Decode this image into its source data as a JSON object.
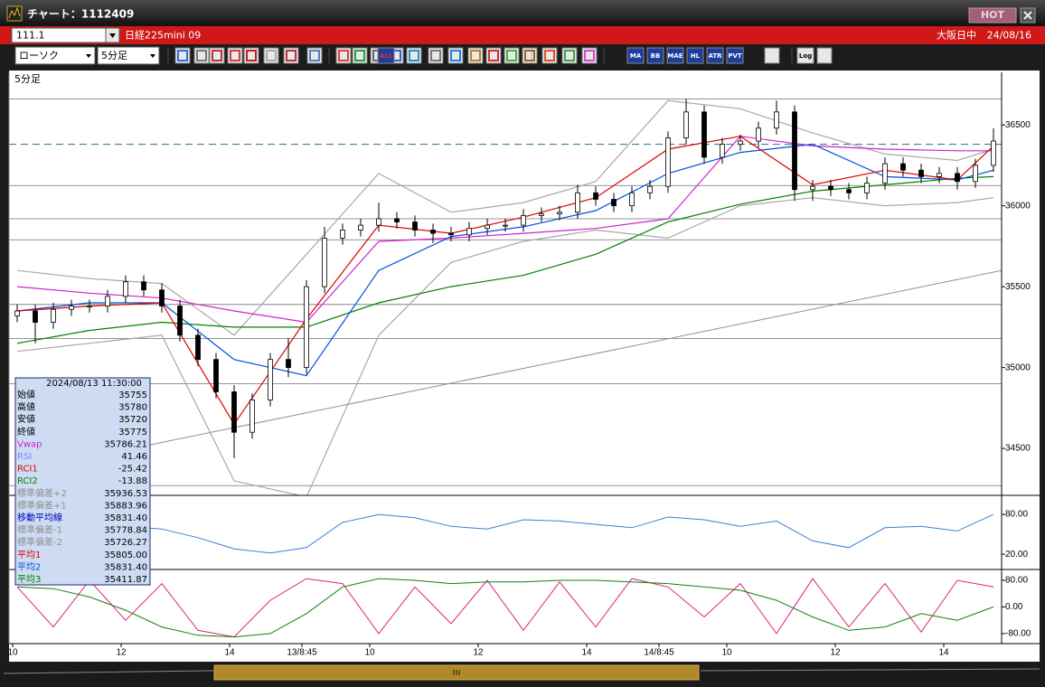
{
  "window": {
    "title": "チャート：1112409",
    "hot": "HOT"
  },
  "header": {
    "code": "111.1",
    "name": "日経225mini 09",
    "market": "大阪日中",
    "date": "24/08/16"
  },
  "toolbar": {
    "chart_type": "ローソク",
    "interval": "5分足",
    "buttons": [
      "ALL",
      "MA",
      "BB",
      "MAE",
      "HL",
      "ATR",
      "PVT",
      "Log"
    ]
  },
  "info": {
    "date": "2024/08/13 11:30:00",
    "rows": [
      {
        "label": "始値",
        "value": 35755,
        "color": "#000000"
      },
      {
        "label": "高値",
        "value": 35780,
        "color": "#000000"
      },
      {
        "label": "安値",
        "value": 35720,
        "color": "#000000"
      },
      {
        "label": "終値",
        "value": 35775,
        "color": "#000000"
      },
      {
        "label": "Vwap",
        "value": 35786.21,
        "color": "#d020d0"
      },
      {
        "label": "RSI",
        "value": 41.46,
        "color": "#8080ff"
      },
      {
        "label": "RCI1",
        "value": -25.42,
        "color": "#e00000"
      },
      {
        "label": "RCI2",
        "value": -13.88,
        "color": "#008000"
      },
      {
        "label": "標準偏差+2",
        "value": 35936.53,
        "color": "#909090"
      },
      {
        "label": "標準偏差+1",
        "value": 35883.96,
        "color": "#909090"
      },
      {
        "label": "移動平均線",
        "value": {
          "value": 35831.4,
          "label": "35831.40"
        },
        "color": "#0000c0"
      },
      {
        "label": "標準偏差-1",
        "value": 35778.84,
        "color": "#909090"
      },
      {
        "label": "標準偏差-2",
        "value": 35726.27,
        "color": "#909090"
      },
      {
        "label": "平均1",
        "value": {
          "value": 35805,
          "label": "35805.00"
        },
        "color": "#e00000"
      },
      {
        "label": "平均2",
        "value": {
          "value": 35831.4,
          "label": "35831.40"
        },
        "color": "#0050e0"
      },
      {
        "label": "平均3",
        "value": 35411.87,
        "color": "#008000"
      }
    ]
  },
  "chart_data": [
    {
      "type": "candlestick",
      "title": "5分足",
      "xlim": [
        -0.8,
        218.8
      ],
      "ylim": [
        34210,
        36825
      ],
      "yticks": [
        36500,
        36000,
        35500,
        35000,
        34500
      ],
      "color_up": "#ffffff",
      "color_down": "#000000",
      "x": [
        1,
        5,
        9,
        13,
        17,
        21,
        25,
        29,
        33,
        37,
        41,
        45,
        49,
        53,
        57,
        61,
        65,
        69,
        73,
        77,
        81,
        85,
        89,
        93,
        97,
        101,
        105,
        109,
        113,
        117,
        121,
        125,
        129,
        133,
        137,
        141,
        145,
        149,
        153,
        157,
        161,
        165,
        169,
        173,
        177,
        181,
        185,
        189,
        193,
        197,
        201,
        205,
        209,
        213,
        217
      ],
      "open": [
        35320,
        35350,
        35280,
        35360,
        35380,
        35380,
        35440,
        35530,
        35480,
        35380,
        35200,
        35050,
        34850,
        34600,
        34800,
        35050,
        35000,
        35500,
        35800,
        35850,
        35880,
        35920,
        35900,
        35850,
        35830,
        35820,
        35860,
        35880,
        35880,
        35940,
        35950,
        35960,
        36080,
        36040,
        36000,
        36080,
        36120,
        36420,
        36580,
        36300,
        36380,
        36400,
        36480,
        36580,
        36100,
        36120,
        36100,
        36080,
        36140,
        36260,
        36220,
        36180,
        36200,
        36150,
        36250
      ],
      "high": [
        35390,
        35390,
        35400,
        35420,
        35420,
        35480,
        35570,
        35570,
        35520,
        35420,
        35240,
        35090,
        34890,
        34840,
        35090,
        35180,
        35540,
        35870,
        35890,
        35920,
        36020,
        35960,
        35940,
        35890,
        35870,
        35900,
        35920,
        35920,
        35980,
        35990,
        36000,
        36130,
        36120,
        36080,
        36120,
        36160,
        36460,
        36660,
        36620,
        36420,
        36440,
        36520,
        36650,
        36620,
        36160,
        36160,
        36140,
        36180,
        36300,
        36300,
        36260,
        36240,
        36240,
        36290,
        36480
      ],
      "low": [
        35280,
        35150,
        35240,
        35320,
        35340,
        35340,
        35400,
        35440,
        35340,
        35160,
        35010,
        34810,
        34440,
        34560,
        34760,
        34940,
        34960,
        35460,
        35760,
        35810,
        35840,
        35860,
        35810,
        35770,
        35780,
        35780,
        35820,
        35840,
        35840,
        35900,
        35910,
        35920,
        36000,
        35960,
        35960,
        36040,
        36080,
        36380,
        36260,
        36260,
        36340,
        36360,
        36440,
        36030,
        36030,
        36060,
        36040,
        36040,
        36100,
        36180,
        36140,
        36140,
        36100,
        36110,
        36210
      ],
      "close": [
        35350,
        35280,
        35360,
        35380,
        35380,
        35440,
        35530,
        35480,
        35380,
        35200,
        35050,
        34850,
        34600,
        34800,
        35050,
        35000,
        35500,
        35800,
        35850,
        35880,
        35920,
        35900,
        35850,
        35830,
        35820,
        35860,
        35880,
        35880,
        35940,
        35950,
        35960,
        36080,
        36040,
        36000,
        36080,
        36120,
        36420,
        36580,
        36300,
        36380,
        36400,
        36480,
        36580,
        36100,
        36120,
        36100,
        36080,
        36140,
        36260,
        36220,
        36180,
        36200,
        36150,
        36250,
        36400
      ],
      "lines_x": [
        1,
        17,
        33,
        49,
        65,
        81,
        97,
        113,
        129,
        145,
        161,
        177,
        193,
        209,
        217
      ],
      "lines": [
        {
          "color": "#a8a8a8",
          "values": [
            35600,
            35550,
            35520,
            35200,
            35700,
            36200,
            35960,
            36020,
            36150,
            36650,
            36600,
            36450,
            36320,
            36280,
            36350
          ]
        },
        {
          "color": "#a8a8a8",
          "values": [
            35100,
            35150,
            35200,
            34300,
            34200,
            35200,
            35650,
            35780,
            35850,
            35800,
            36000,
            36050,
            36000,
            36020,
            36050
          ]
        },
        {
          "color": "#d020d0",
          "values": [
            35500,
            35460,
            35430,
            35350,
            35280,
            35780,
            35800,
            35830,
            35860,
            35920,
            36430,
            36370,
            36350,
            36340,
            36340
          ]
        },
        {
          "color": "#008000",
          "values": [
            35150,
            35230,
            35280,
            35250,
            35250,
            35400,
            35500,
            35570,
            35700,
            35900,
            36010,
            36090,
            36130,
            36170,
            36180
          ]
        },
        {
          "color": "#0050e0",
          "values": [
            35350,
            35400,
            35400,
            35050,
            34950,
            35600,
            35810,
            35870,
            35970,
            36200,
            36330,
            36380,
            36180,
            36160,
            36220
          ]
        },
        {
          "color": "#e00000",
          "values": [
            35350,
            35380,
            35400,
            34650,
            35300,
            35880,
            35830,
            35930,
            36050,
            36350,
            36430,
            36130,
            36220,
            36160,
            36370
          ]
        }
      ],
      "hlines": [
        36660,
        36125,
        35920,
        35790,
        35390,
        35180,
        34900,
        34270
      ],
      "hline_color": "#707070",
      "dashed_line": 36380,
      "dashed_color": "#207080",
      "trendline": {
        "x": [
          30,
          218.8
        ],
        "values": [
          34520,
          35600
        ],
        "color": "#909090"
      }
    },
    {
      "type": "line",
      "xlim": [
        -0.8,
        218.8
      ],
      "ylim": [
        -3,
        106
      ],
      "yticks": [
        {
          "value": 80,
          "label": "80.00"
        },
        {
          "value": 20,
          "label": "20.00"
        }
      ],
      "x": [
        1,
        9,
        17,
        25,
        33,
        41,
        49,
        57,
        65,
        73,
        81,
        89,
        97,
        105,
        113,
        121,
        129,
        137,
        145,
        153,
        161,
        169,
        177,
        185,
        193,
        201,
        209,
        217
      ],
      "series": [
        {
          "color": "#3a80d8",
          "values": [
            55,
            52,
            60,
            62,
            58,
            45,
            28,
            22,
            30,
            68,
            80,
            75,
            62,
            58,
            72,
            70,
            65,
            60,
            76,
            72,
            62,
            70,
            40,
            30,
            60,
            62,
            55,
            80
          ]
        }
      ]
    },
    {
      "type": "line",
      "xlim": [
        -0.8,
        218.8
      ],
      "ylim": [
        -110,
        107
      ],
      "yticks": [
        {
          "value": 80,
          "label": "80.00"
        },
        {
          "value": 0,
          "label": "0.00"
        },
        {
          "value": -80,
          "label": "-80.00"
        }
      ],
      "xticks": [
        {
          "value": 0,
          "label": "10"
        },
        {
          "value": 24,
          "label": "12"
        },
        {
          "value": 48,
          "label": "14"
        },
        {
          "value": 64,
          "label": "13/8:45"
        },
        {
          "value": 79,
          "label": "10"
        },
        {
          "value": 103,
          "label": "12"
        },
        {
          "value": 127,
          "label": "14"
        },
        {
          "value": 143,
          "label": "14/8:45"
        },
        {
          "value": 158,
          "label": "10"
        },
        {
          "value": 182,
          "label": "12"
        },
        {
          "value": 206,
          "label": "14"
        }
      ],
      "x": [
        1,
        9,
        17,
        25,
        33,
        41,
        49,
        57,
        65,
        73,
        81,
        89,
        97,
        105,
        113,
        121,
        129,
        137,
        145,
        153,
        161,
        169,
        177,
        185,
        193,
        201,
        209,
        217
      ],
      "series": [
        {
          "color": "#e0207a",
          "values": [
            60,
            -60,
            80,
            -40,
            70,
            -70,
            -90,
            20,
            85,
            70,
            -80,
            60,
            -50,
            80,
            -70,
            75,
            -60,
            85,
            60,
            -30,
            70,
            -80,
            85,
            -60,
            70,
            -75,
            80,
            60
          ]
        },
        {
          "color": "#108010",
          "values": [
            60,
            55,
            30,
            -10,
            -60,
            -85,
            -90,
            -80,
            -20,
            60,
            85,
            80,
            70,
            75,
            75,
            80,
            80,
            75,
            70,
            60,
            50,
            20,
            -30,
            -70,
            -60,
            -20,
            -40,
            0
          ]
        }
      ]
    }
  ]
}
